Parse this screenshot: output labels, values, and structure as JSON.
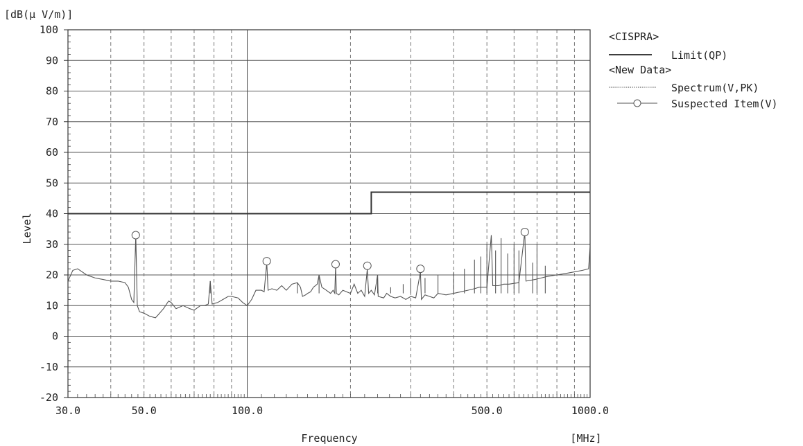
{
  "chart_data": {
    "type": "line",
    "y_unit": "[dB(μ V/m)]",
    "ylabel": "Level",
    "xlabel": "Frequency",
    "x_unit": "[MHz]",
    "x_scale": "log",
    "xlim": [
      30,
      1000
    ],
    "ylim": [
      -20,
      100
    ],
    "x_tick_labels": [
      {
        "value": 30,
        "label": "30.0"
      },
      {
        "value": 50,
        "label": "50.0"
      },
      {
        "value": 100,
        "label": "100.0"
      },
      {
        "value": 500,
        "label": "500.0"
      },
      {
        "value": 1000,
        "label": "1000.0"
      }
    ],
    "y_ticks": [
      100,
      90,
      80,
      70,
      60,
      50,
      40,
      30,
      20,
      10,
      0,
      -10,
      -20
    ],
    "grid": true,
    "legend": {
      "placement": "right",
      "groups": [
        {
          "title": "<CISPRA>",
          "entries": [
            {
              "label": "Limit(QP)",
              "style": "solid-thick"
            }
          ]
        },
        {
          "title": "<New Data>",
          "entries": [
            {
              "label": "Spectrum(V,PK)",
              "style": "dotted"
            },
            {
              "label": "Suspected Item(V)",
              "style": "circle-marker"
            }
          ]
        }
      ]
    },
    "series": [
      {
        "name": "Limit(QP)",
        "color": "#333333",
        "points": [
          [
            30,
            40
          ],
          [
            230,
            40
          ],
          [
            230,
            47
          ],
          [
            1000,
            47
          ]
        ]
      },
      {
        "name": "Spectrum(V,PK)",
        "color": "#555555",
        "points": [
          [
            30,
            18
          ],
          [
            31,
            21.5
          ],
          [
            32,
            22
          ],
          [
            33,
            21
          ],
          [
            34,
            20
          ],
          [
            36,
            19
          ],
          [
            38,
            18.5
          ],
          [
            40,
            18
          ],
          [
            42,
            18
          ],
          [
            44,
            17.5
          ],
          [
            45,
            16
          ],
          [
            46,
            12
          ],
          [
            46.7,
            11
          ],
          [
            47.3,
            33
          ],
          [
            47.8,
            10
          ],
          [
            48.5,
            8
          ],
          [
            50,
            7.5
          ],
          [
            52,
            6.5
          ],
          [
            54,
            6
          ],
          [
            55,
            7
          ],
          [
            57,
            9
          ],
          [
            59,
            11.5
          ],
          [
            60,
            11
          ],
          [
            62,
            9
          ],
          [
            65,
            10
          ],
          [
            68,
            9
          ],
          [
            70,
            8.5
          ],
          [
            73,
            10
          ],
          [
            75,
            10
          ],
          [
            77,
            10.5
          ],
          [
            78,
            18
          ],
          [
            79,
            10.5
          ],
          [
            82,
            11
          ],
          [
            85,
            12
          ],
          [
            88,
            13
          ],
          [
            90,
            13
          ],
          [
            94,
            12.5
          ],
          [
            97,
            11
          ],
          [
            100,
            10
          ],
          [
            103,
            12
          ],
          [
            106,
            15
          ],
          [
            110,
            15
          ],
          [
            112,
            14.5
          ],
          [
            114,
            24
          ],
          [
            115,
            15
          ],
          [
            118,
            15.5
          ],
          [
            122,
            15
          ],
          [
            126,
            16.5
          ],
          [
            130,
            15
          ],
          [
            135,
            17
          ],
          [
            140,
            17.5
          ],
          [
            143,
            16
          ],
          [
            145,
            13
          ],
          [
            148,
            13.5
          ],
          [
            150,
            14
          ],
          [
            153,
            14.5
          ],
          [
            156,
            16
          ],
          [
            160,
            17
          ],
          [
            162,
            20
          ],
          [
            165,
            16
          ],
          [
            170,
            15
          ],
          [
            175,
            14
          ],
          [
            178,
            15
          ],
          [
            180,
            14
          ],
          [
            181,
            23
          ],
          [
            182,
            14
          ],
          [
            185,
            13.5
          ],
          [
            190,
            15
          ],
          [
            200,
            14
          ],
          [
            205,
            17
          ],
          [
            210,
            14
          ],
          [
            215,
            15
          ],
          [
            220,
            13
          ],
          [
            224,
            22
          ],
          [
            226,
            14
          ],
          [
            230,
            15
          ],
          [
            235,
            13.5
          ],
          [
            240,
            20
          ],
          [
            241,
            13
          ],
          [
            250,
            12.5
          ],
          [
            255,
            14
          ],
          [
            262,
            13
          ],
          [
            270,
            12.5
          ],
          [
            280,
            13
          ],
          [
            290,
            12
          ],
          [
            300,
            13
          ],
          [
            310,
            12.5
          ],
          [
            320,
            21
          ],
          [
            322,
            12
          ],
          [
            330,
            13.5
          ],
          [
            340,
            13
          ],
          [
            350,
            12.5
          ],
          [
            360,
            14
          ],
          [
            380,
            13.5
          ],
          [
            400,
            14
          ],
          [
            420,
            14.5
          ],
          [
            440,
            15
          ],
          [
            460,
            15.5
          ],
          [
            475,
            16
          ],
          [
            500,
            16
          ],
          [
            515,
            33
          ],
          [
            520,
            16.5
          ],
          [
            540,
            16.5
          ],
          [
            560,
            17
          ],
          [
            580,
            17
          ],
          [
            620,
            17.5
          ],
          [
            645,
            34
          ],
          [
            650,
            18
          ],
          [
            690,
            18.5
          ],
          [
            720,
            19
          ],
          [
            750,
            19.5
          ],
          [
            800,
            20
          ],
          [
            850,
            20.5
          ],
          [
            900,
            21
          ],
          [
            950,
            21.5
          ],
          [
            990,
            22
          ],
          [
            1000,
            29
          ]
        ]
      }
    ],
    "suspected_items": [
      {
        "x": 47.3,
        "y": 33
      },
      {
        "x": 114,
        "y": 24.5
      },
      {
        "x": 181,
        "y": 23.5
      },
      {
        "x": 224,
        "y": 23
      },
      {
        "x": 320,
        "y": 22
      },
      {
        "x": 645,
        "y": 34
      }
    ],
    "extra_spikes": [
      [
        78,
        18
      ],
      [
        140,
        17.5
      ],
      [
        162,
        20
      ],
      [
        240,
        20
      ],
      [
        262,
        16
      ],
      [
        285,
        17
      ],
      [
        300,
        19
      ],
      [
        330,
        19
      ],
      [
        360,
        20
      ],
      [
        400,
        21
      ],
      [
        430,
        22
      ],
      [
        460,
        25
      ],
      [
        480,
        26
      ],
      [
        500,
        30
      ],
      [
        530,
        28
      ],
      [
        550,
        32
      ],
      [
        575,
        27
      ],
      [
        600,
        30
      ],
      [
        620,
        28
      ],
      [
        680,
        24
      ],
      [
        700,
        30
      ],
      [
        740,
        23
      ]
    ]
  }
}
